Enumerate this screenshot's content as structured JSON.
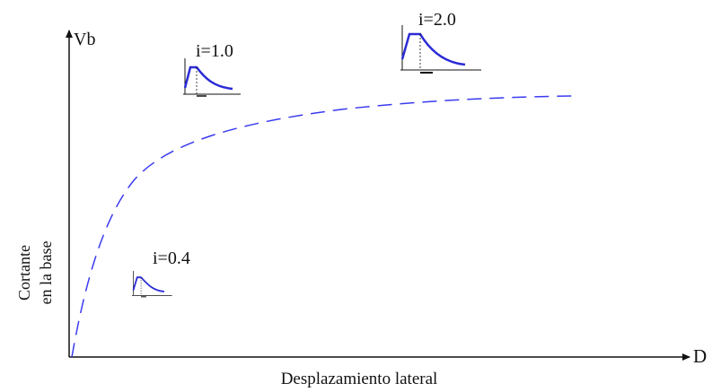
{
  "labels": {
    "y_axis_symbol": "Vb",
    "x_axis_symbol": "D",
    "y_axis_title_line1": "Cortante",
    "y_axis_title_line2": "en la base",
    "x_axis_title": "Desplazamiento lateral"
  },
  "insets": [
    {
      "label": "i=0.4"
    },
    {
      "label": "i=1.0"
    },
    {
      "label": "i=2.0"
    }
  ],
  "colors": {
    "curve": "#3a3af0",
    "axis": "#111111",
    "inset_pulse": "#2b2bd6"
  }
}
